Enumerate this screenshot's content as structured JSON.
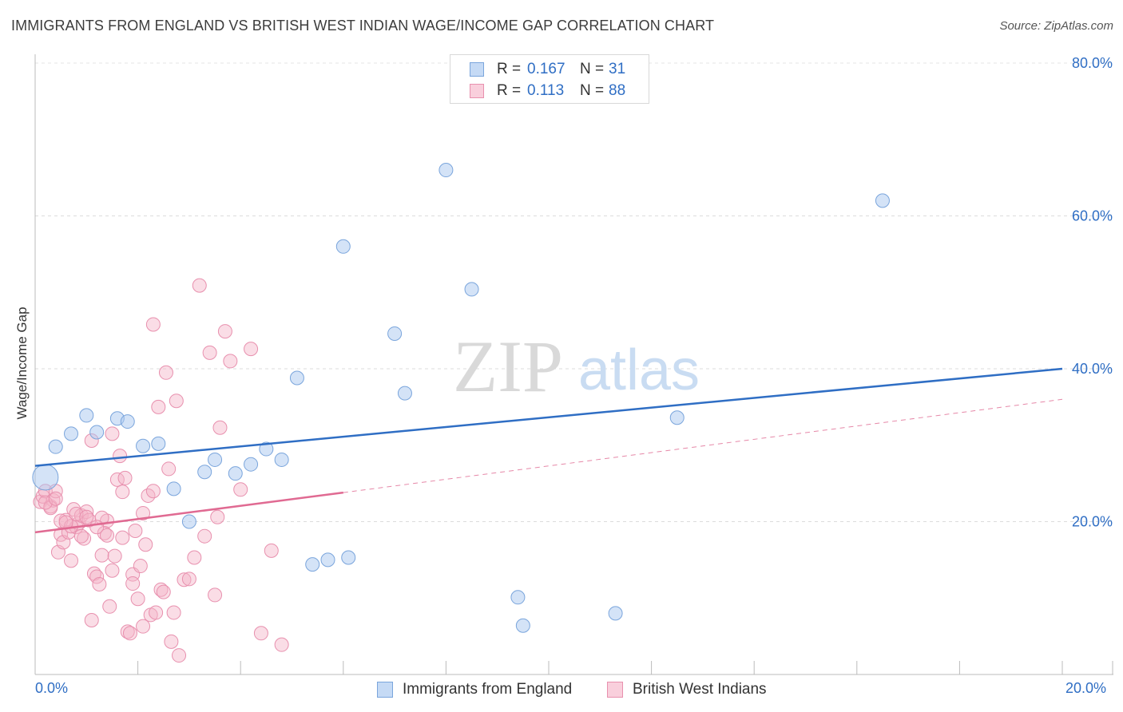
{
  "title": "IMMIGRANTS FROM ENGLAND VS BRITISH WEST INDIAN WAGE/INCOME GAP CORRELATION CHART",
  "source": "Source: ZipAtlas.com",
  "watermark": {
    "zip": "ZIP",
    "atlas": "atlas"
  },
  "legend": {
    "series": [
      {
        "r_label": "R =",
        "r_value": "0.167",
        "n_label": "N =",
        "n_value": "31"
      },
      {
        "r_label": "R =",
        "r_value": "0.113",
        "n_label": "N =",
        "n_value": "88"
      }
    ]
  },
  "chart_data": {
    "type": "scatter",
    "title": "IMMIGRANTS FROM ENGLAND VS BRITISH WEST INDIAN WAGE/INCOME GAP CORRELATION CHART",
    "xlabel": "",
    "ylabel": "Wage/Income Gap",
    "xlim": [
      0,
      20
    ],
    "ylim": [
      0,
      80
    ],
    "x_tick_labels": [
      "0.0%",
      "20.0%"
    ],
    "y_ticks": [
      20,
      40,
      60,
      80
    ],
    "y_tick_labels": [
      "20.0%",
      "40.0%",
      "60.0%",
      "80.0%"
    ],
    "colors": {
      "blue_fill": "#aac8ef",
      "blue_stroke": "#7aa5dc",
      "blue_line": "#2f6ec4",
      "pink_fill": "#f5b3c8",
      "pink_stroke": "#e890ae",
      "pink_line": "#e06a92",
      "tick_label": "#2f6ec4"
    },
    "series": [
      {
        "name": "Immigrants from England",
        "color": "#aac8ef",
        "points": [
          [
            0.2,
            25.8
          ],
          [
            0.4,
            29.8
          ],
          [
            0.7,
            31.5
          ],
          [
            1.0,
            33.9
          ],
          [
            1.2,
            31.7
          ],
          [
            1.6,
            33.5
          ],
          [
            1.8,
            33.1
          ],
          [
            2.1,
            29.9
          ],
          [
            2.4,
            30.2
          ],
          [
            2.7,
            24.3
          ],
          [
            3.0,
            20.0
          ],
          [
            3.3,
            26.5
          ],
          [
            3.5,
            28.1
          ],
          [
            3.9,
            26.3
          ],
          [
            4.2,
            27.5
          ],
          [
            4.5,
            29.5
          ],
          [
            4.8,
            28.1
          ],
          [
            5.1,
            38.8
          ],
          [
            5.4,
            14.4
          ],
          [
            5.7,
            15.0
          ],
          [
            6.0,
            56.0
          ],
          [
            6.1,
            15.3
          ],
          [
            7.0,
            44.6
          ],
          [
            7.2,
            36.8
          ],
          [
            8.0,
            66.0
          ],
          [
            8.5,
            50.4
          ],
          [
            9.4,
            10.1
          ],
          [
            9.5,
            6.4
          ],
          [
            11.3,
            8.0
          ],
          [
            12.5,
            33.6
          ],
          [
            16.5,
            62.0
          ]
        ],
        "trend": {
          "x": [
            0,
            20
          ],
          "y": [
            27.3,
            40.0
          ]
        }
      },
      {
        "name": "British West Indians",
        "color": "#f5b3c8",
        "points": [
          [
            0.1,
            22.6
          ],
          [
            0.15,
            23.3
          ],
          [
            0.2,
            24.0
          ],
          [
            0.3,
            22.0
          ],
          [
            0.35,
            22.8
          ],
          [
            0.4,
            24.0
          ],
          [
            0.45,
            16.0
          ],
          [
            0.5,
            18.3
          ],
          [
            0.55,
            17.3
          ],
          [
            0.6,
            20.2
          ],
          [
            0.65,
            18.6
          ],
          [
            0.7,
            14.9
          ],
          [
            0.75,
            21.6
          ],
          [
            0.8,
            19.3
          ],
          [
            0.85,
            19.8
          ],
          [
            0.9,
            20.8
          ],
          [
            0.95,
            17.8
          ],
          [
            1.0,
            21.3
          ],
          [
            1.05,
            20.2
          ],
          [
            1.1,
            7.1
          ],
          [
            1.15,
            13.2
          ],
          [
            1.2,
            12.8
          ],
          [
            1.25,
            11.8
          ],
          [
            1.3,
            15.6
          ],
          [
            1.35,
            18.5
          ],
          [
            1.4,
            20.1
          ],
          [
            1.45,
            8.9
          ],
          [
            1.5,
            13.6
          ],
          [
            1.55,
            15.5
          ],
          [
            1.6,
            25.5
          ],
          [
            1.65,
            28.6
          ],
          [
            1.7,
            23.9
          ],
          [
            1.75,
            25.7
          ],
          [
            1.8,
            5.6
          ],
          [
            1.85,
            5.4
          ],
          [
            1.9,
            13.1
          ],
          [
            1.95,
            18.8
          ],
          [
            2.0,
            9.9
          ],
          [
            2.05,
            14.2
          ],
          [
            2.1,
            6.3
          ],
          [
            2.15,
            17.0
          ],
          [
            2.2,
            23.4
          ],
          [
            2.25,
            7.8
          ],
          [
            2.3,
            45.8
          ],
          [
            2.35,
            8.1
          ],
          [
            2.4,
            35.0
          ],
          [
            2.45,
            11.1
          ],
          [
            2.5,
            10.8
          ],
          [
            2.55,
            39.5
          ],
          [
            2.6,
            26.9
          ],
          [
            2.65,
            4.3
          ],
          [
            2.7,
            8.1
          ],
          [
            2.75,
            35.8
          ],
          [
            2.8,
            2.5
          ],
          [
            2.9,
            12.4
          ],
          [
            3.0,
            12.5
          ],
          [
            3.1,
            15.3
          ],
          [
            3.2,
            50.9
          ],
          [
            3.3,
            18.1
          ],
          [
            3.4,
            42.1
          ],
          [
            3.5,
            10.4
          ],
          [
            3.55,
            20.6
          ],
          [
            3.6,
            32.3
          ],
          [
            3.7,
            44.9
          ],
          [
            3.8,
            41.0
          ],
          [
            4.0,
            24.2
          ],
          [
            4.2,
            42.6
          ],
          [
            4.4,
            5.4
          ],
          [
            4.6,
            16.2
          ],
          [
            4.8,
            3.9
          ],
          [
            0.3,
            21.8
          ],
          [
            0.5,
            20.1
          ],
          [
            0.7,
            19.4
          ],
          [
            0.9,
            18.1
          ],
          [
            1.1,
            30.6
          ],
          [
            1.3,
            20.5
          ],
          [
            1.5,
            31.5
          ],
          [
            1.7,
            17.9
          ],
          [
            1.9,
            11.9
          ],
          [
            2.1,
            21.1
          ],
          [
            2.3,
            24.0
          ],
          [
            0.2,
            22.5
          ],
          [
            0.4,
            23.0
          ],
          [
            0.6,
            19.9
          ],
          [
            0.8,
            21.0
          ],
          [
            1.0,
            20.6
          ],
          [
            1.2,
            19.3
          ],
          [
            1.4,
            18.2
          ]
        ],
        "trend": {
          "x": [
            0,
            6
          ],
          "y": [
            18.6,
            23.8
          ],
          "dashed_extension": {
            "x": [
              6,
              20
            ],
            "y": [
              23.8,
              36.0
            ]
          }
        }
      }
    ]
  },
  "bottom_legend": {
    "items": [
      {
        "label": "Immigrants from England"
      },
      {
        "label": "British West Indians"
      }
    ]
  }
}
